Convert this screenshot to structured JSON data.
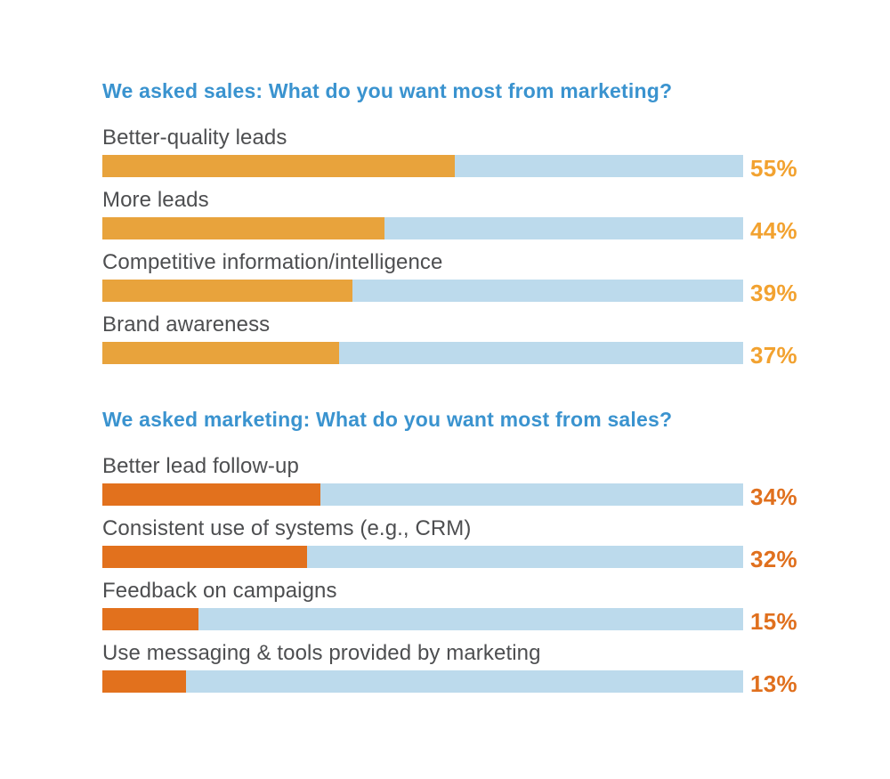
{
  "colors": {
    "background": "#ffffff",
    "heading": "#3a93cf",
    "label": "#4d4e50",
    "track": "#bcdaec",
    "sales_bar": "#e8a33c",
    "sales_value_label": "#f2a230",
    "marketing_bar": "#e2711d",
    "marketing_value_label": "#e0701e"
  },
  "chart_data": [
    {
      "type": "bar",
      "orientation": "horizontal",
      "title": "We asked sales: What do you want most from marketing?",
      "unit": "%",
      "xlim": [
        0,
        100
      ],
      "grid": false,
      "legend": false,
      "bar_color": "#e8a33c",
      "track_color": "#bcdaec",
      "value_label_color": "#f2a230",
      "categories": [
        "Better-quality leads",
        "More leads",
        "Competitive information/intelligence",
        "Brand awareness"
      ],
      "values": [
        55,
        44,
        39,
        37
      ],
      "value_labels": [
        "55%",
        "44%",
        "39%",
        "37%"
      ]
    },
    {
      "type": "bar",
      "orientation": "horizontal",
      "title": "We asked marketing: What do you want most from sales?",
      "unit": "%",
      "xlim": [
        0,
        100
      ],
      "grid": false,
      "legend": false,
      "bar_color": "#e2711d",
      "track_color": "#bcdaec",
      "value_label_color": "#e0701e",
      "categories": [
        "Better lead follow-up",
        "Consistent use of systems (e.g., CRM)",
        "Feedback on campaigns",
        "Use messaging & tools provided by marketing"
      ],
      "values": [
        34,
        32,
        15,
        13
      ],
      "value_labels": [
        "34%",
        "32%",
        "15%",
        "13%"
      ]
    }
  ]
}
